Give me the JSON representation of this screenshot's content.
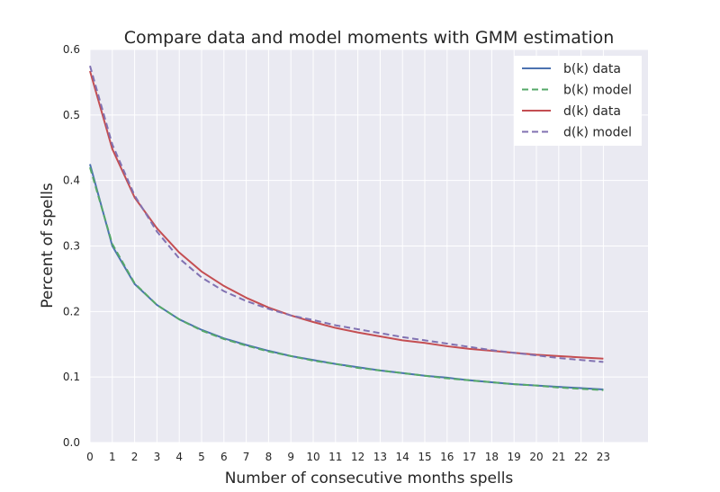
{
  "chart_data": {
    "type": "line",
    "title": "Compare data and model moments with GMM estimation",
    "xlabel": "Number of consecutive months spells",
    "ylabel": "Percent of spells",
    "xlim": [
      0,
      25
    ],
    "ylim": [
      0.0,
      0.6
    ],
    "x": [
      0,
      1,
      2,
      3,
      4,
      5,
      6,
      7,
      8,
      9,
      10,
      11,
      12,
      13,
      14,
      15,
      16,
      17,
      18,
      19,
      20,
      21,
      22,
      23
    ],
    "x_tick_labels": [
      "0",
      "1",
      "2",
      "3",
      "4",
      "5",
      "6",
      "7",
      "8",
      "9",
      "10",
      "11",
      "12",
      "13",
      "14",
      "15",
      "16",
      "17",
      "18",
      "19",
      "20",
      "21",
      "22",
      "23"
    ],
    "y_ticks": [
      0.0,
      0.1,
      0.2,
      0.3,
      0.4,
      0.5,
      0.6
    ],
    "y_tick_labels": [
      "0.0",
      "0.1",
      "0.2",
      "0.3",
      "0.4",
      "0.5",
      "0.6"
    ],
    "grid": true,
    "legend_position": "top-right",
    "background": "#eaeaf2",
    "series": [
      {
        "name": "b(k) data",
        "color": "#4c72b0",
        "dash": "solid",
        "values": [
          0.425,
          0.3,
          0.242,
          0.21,
          0.188,
          0.172,
          0.159,
          0.149,
          0.14,
          0.132,
          0.126,
          0.12,
          0.115,
          0.11,
          0.106,
          0.102,
          0.099,
          0.095,
          0.092,
          0.089,
          0.087,
          0.085,
          0.083,
          0.081
        ]
      },
      {
        "name": "b(k) model",
        "color": "#55a868",
        "dash": "dashed",
        "values": [
          0.42,
          0.303,
          0.243,
          0.21,
          0.188,
          0.171,
          0.158,
          0.148,
          0.139,
          0.132,
          0.125,
          0.12,
          0.114,
          0.11,
          0.106,
          0.102,
          0.098,
          0.095,
          0.092,
          0.089,
          0.087,
          0.084,
          0.082,
          0.08
        ]
      },
      {
        "name": "d(k) data",
        "color": "#c44e52",
        "dash": "solid",
        "values": [
          0.567,
          0.448,
          0.374,
          0.327,
          0.29,
          0.261,
          0.239,
          0.221,
          0.206,
          0.194,
          0.184,
          0.175,
          0.168,
          0.162,
          0.156,
          0.152,
          0.147,
          0.143,
          0.14,
          0.137,
          0.134,
          0.132,
          0.13,
          0.128
        ]
      },
      {
        "name": "d(k) model",
        "color": "#8172b2",
        "dash": "dashed",
        "values": [
          0.575,
          0.455,
          0.377,
          0.322,
          0.281,
          0.252,
          0.231,
          0.216,
          0.204,
          0.194,
          0.187,
          0.179,
          0.173,
          0.167,
          0.161,
          0.156,
          0.151,
          0.146,
          0.141,
          0.137,
          0.133,
          0.129,
          0.126,
          0.123
        ]
      }
    ]
  }
}
